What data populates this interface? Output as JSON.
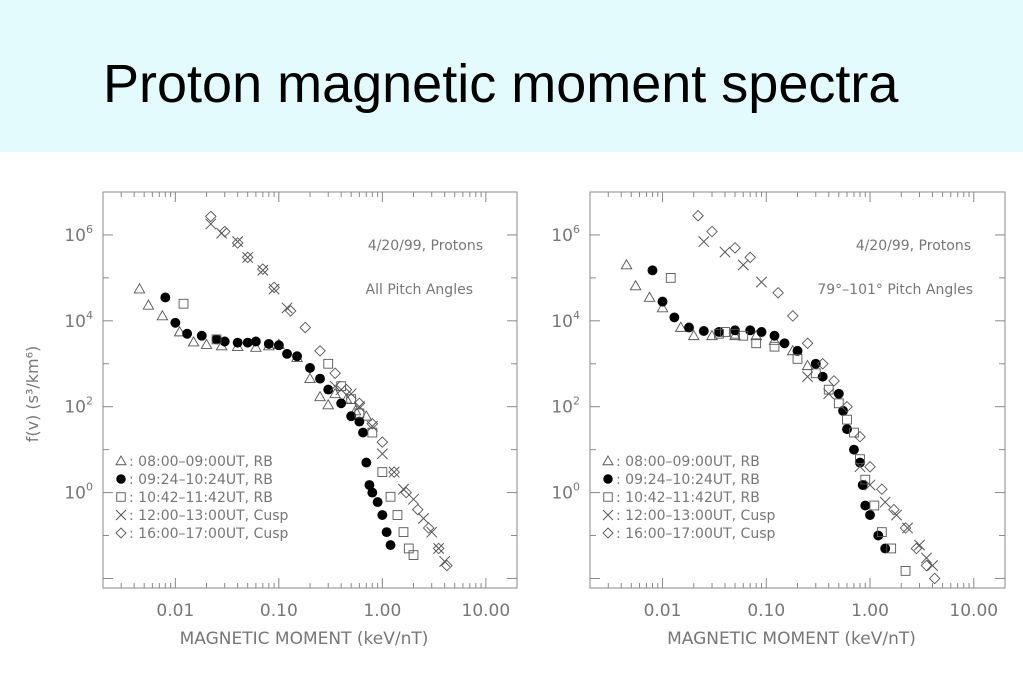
{
  "slide": {
    "title": "Proton magnetic moment spectra"
  },
  "colors": {
    "banner": "#e3fbfd",
    "axis": "#888888",
    "text": "#777777",
    "filled_marker": "#000000"
  },
  "marker_symbols": {
    "triangle": "△",
    "filled_circle": "●",
    "square": "□",
    "cross": "×",
    "diamond": "◇"
  },
  "chart_data": [
    {
      "type": "scatter",
      "title": "4/20/99, Protons",
      "subtitle": "All Pitch Angles",
      "xlabel": "MAGNETIC MOMENT (keV/nT)",
      "ylabel": "f(v) (s³/km⁶)",
      "xscale": "log",
      "yscale": "log",
      "xlim": [
        0.002,
        20
      ],
      "ylim": [
        0.006,
        10000000
      ],
      "xticks": [
        {
          "v": 0.01,
          "label": "0.01"
        },
        {
          "v": 0.1,
          "label": "0.10"
        },
        {
          "v": 1,
          "label": "1.00"
        },
        {
          "v": 10,
          "label": "10.00"
        }
      ],
      "yticks": [
        {
          "v": 1,
          "base": "10",
          "exp": "0"
        },
        {
          "v": 100,
          "base": "10",
          "exp": "2"
        },
        {
          "v": 10000,
          "base": "10",
          "exp": "4"
        },
        {
          "v": 1000000,
          "base": "10",
          "exp": "6"
        }
      ],
      "legend_position": "bottom-left",
      "series": [
        {
          "name": "08:00–09:00UT, RB",
          "marker": "triangle",
          "points": [
            [
              0.0045,
              55000
            ],
            [
              0.0055,
              23000
            ],
            [
              0.0075,
              13000
            ],
            [
              0.011,
              5500
            ],
            [
              0.015,
              3200
            ],
            [
              0.02,
              2800
            ],
            [
              0.028,
              2600
            ],
            [
              0.04,
              2500
            ],
            [
              0.06,
              2400
            ],
            [
              0.08,
              2600
            ],
            [
              0.1,
              2800
            ],
            [
              0.15,
              1400
            ],
            [
              0.2,
              450
            ],
            [
              0.25,
              170
            ],
            [
              0.3,
              110
            ],
            [
              0.35,
              200
            ],
            [
              0.45,
              150
            ],
            [
              0.55,
              80
            ],
            [
              0.7,
              60
            ]
          ]
        },
        {
          "name": "09:24–10:24UT, RB",
          "marker": "filled_circle",
          "points": [
            [
              0.008,
              35000
            ],
            [
              0.01,
              9000
            ],
            [
              0.013,
              5000
            ],
            [
              0.018,
              4500
            ],
            [
              0.025,
              3700
            ],
            [
              0.03,
              3300
            ],
            [
              0.04,
              3100
            ],
            [
              0.05,
              3100
            ],
            [
              0.06,
              3300
            ],
            [
              0.08,
              2900
            ],
            [
              0.1,
              2700
            ],
            [
              0.12,
              1700
            ],
            [
              0.15,
              1500
            ],
            [
              0.2,
              800
            ],
            [
              0.25,
              450
            ],
            [
              0.3,
              250
            ],
            [
              0.4,
              120
            ],
            [
              0.5,
              60
            ],
            [
              0.6,
              45
            ],
            [
              0.65,
              25
            ],
            [
              0.7,
              5
            ],
            [
              0.75,
              1.5
            ],
            [
              0.8,
              1.0
            ],
            [
              0.9,
              0.6
            ],
            [
              1.0,
              0.3
            ],
            [
              1.1,
              0.12
            ],
            [
              1.2,
              0.06
            ]
          ]
        },
        {
          "name": "10:42–11:42UT, RB",
          "marker": "square",
          "points": [
            [
              0.012,
              25000
            ],
            [
              0.025,
              3700
            ],
            [
              0.3,
              1000
            ],
            [
              0.4,
              300
            ],
            [
              0.5,
              150
            ],
            [
              0.6,
              70
            ],
            [
              0.8,
              25
            ],
            [
              1.0,
              3
            ],
            [
              1.2,
              0.8
            ],
            [
              1.4,
              0.3
            ],
            [
              1.6,
              0.12
            ],
            [
              1.8,
              0.05
            ],
            [
              2.0,
              0.035
            ]
          ]
        },
        {
          "name": "12:00–13:00UT, Cusp",
          "marker": "cross",
          "points": [
            [
              0.022,
              1800000
            ],
            [
              0.028,
              1100000
            ],
            [
              0.04,
              700000
            ],
            [
              0.05,
              300000
            ],
            [
              0.07,
              150000
            ],
            [
              0.09,
              55000
            ],
            [
              0.12,
              20000
            ],
            [
              0.35,
              300
            ],
            [
              0.4,
              250
            ],
            [
              0.5,
              200
            ],
            [
              0.6,
              100
            ],
            [
              0.8,
              35
            ],
            [
              1.0,
              8
            ],
            [
              1.3,
              3
            ],
            [
              1.6,
              1.2
            ],
            [
              2.0,
              0.7
            ],
            [
              2.5,
              0.25
            ],
            [
              3.0,
              0.12
            ],
            [
              3.5,
              0.05
            ],
            [
              4.0,
              0.025
            ]
          ]
        },
        {
          "name": "16:00–17:00UT, Cusp",
          "marker": "diamond",
          "points": [
            [
              0.022,
              2700000
            ],
            [
              0.03,
              1200000
            ],
            [
              0.04,
              650000
            ],
            [
              0.05,
              300000
            ],
            [
              0.07,
              160000
            ],
            [
              0.09,
              60000
            ],
            [
              0.13,
              17000
            ],
            [
              0.18,
              7000
            ],
            [
              0.25,
              2000
            ],
            [
              0.35,
              600
            ],
            [
              0.45,
              250
            ],
            [
              0.6,
              120
            ],
            [
              0.8,
              40
            ],
            [
              1.0,
              15
            ],
            [
              1.3,
              3
            ],
            [
              1.7,
              1.0
            ],
            [
              2.2,
              0.4
            ],
            [
              2.8,
              0.15
            ],
            [
              3.5,
              0.05
            ],
            [
              4.2,
              0.02
            ]
          ]
        }
      ]
    },
    {
      "type": "scatter",
      "title": "4/20/99, Protons",
      "subtitle": "79°–101° Pitch Angles",
      "xlabel": "MAGNETIC MOMENT (keV/nT)",
      "ylabel": "",
      "xscale": "log",
      "yscale": "log",
      "xlim": [
        0.002,
        20
      ],
      "ylim": [
        0.006,
        10000000
      ],
      "xticks": [
        {
          "v": 0.01,
          "label": "0.01"
        },
        {
          "v": 0.1,
          "label": "0.10"
        },
        {
          "v": 1,
          "label": "1.00"
        },
        {
          "v": 10,
          "label": "10.00"
        }
      ],
      "yticks": [
        {
          "v": 1,
          "base": "10",
          "exp": "0"
        },
        {
          "v": 100,
          "base": "10",
          "exp": "2"
        },
        {
          "v": 10000,
          "base": "10",
          "exp": "4"
        },
        {
          "v": 1000000,
          "base": "10",
          "exp": "6"
        }
      ],
      "legend_position": "bottom-left",
      "series": [
        {
          "name": "08:00–09:00UT, RB",
          "marker": "triangle",
          "points": [
            [
              0.0045,
              200000
            ],
            [
              0.0055,
              65000
            ],
            [
              0.0075,
              35000
            ],
            [
              0.01,
              20000
            ],
            [
              0.015,
              7000
            ],
            [
              0.02,
              4500
            ],
            [
              0.03,
              4500
            ],
            [
              0.05,
              4500
            ],
            [
              0.08,
              4500
            ],
            [
              0.12,
              3500
            ],
            [
              0.18,
              2000
            ],
            [
              0.25,
              900
            ]
          ]
        },
        {
          "name": "09:24–10:24UT, RB",
          "marker": "filled_circle",
          "points": [
            [
              0.008,
              150000
            ],
            [
              0.01,
              28000
            ],
            [
              0.013,
              12000
            ],
            [
              0.018,
              7000
            ],
            [
              0.025,
              5800
            ],
            [
              0.035,
              5500
            ],
            [
              0.05,
              6000
            ],
            [
              0.07,
              6000
            ],
            [
              0.09,
              5500
            ],
            [
              0.12,
              4500
            ],
            [
              0.15,
              3000
            ],
            [
              0.2,
              2000
            ],
            [
              0.3,
              1000
            ],
            [
              0.35,
              500
            ],
            [
              0.5,
              200
            ],
            [
              0.55,
              80
            ],
            [
              0.6,
              30
            ],
            [
              0.7,
              10
            ],
            [
              0.8,
              5
            ],
            [
              0.85,
              1.5
            ],
            [
              0.9,
              0.5
            ],
            [
              1.0,
              0.3
            ],
            [
              1.2,
              0.1
            ],
            [
              1.4,
              0.05
            ]
          ]
        },
        {
          "name": "10:42–11:42UT, RB",
          "marker": "square",
          "points": [
            [
              0.012,
              100000
            ],
            [
              0.035,
              5000
            ],
            [
              0.04,
              5500
            ],
            [
              0.05,
              5000
            ],
            [
              0.06,
              4500
            ],
            [
              0.08,
              3000
            ],
            [
              0.12,
              2500
            ],
            [
              0.2,
              1300
            ],
            [
              0.3,
              600
            ],
            [
              0.4,
              250
            ],
            [
              0.5,
              120
            ],
            [
              0.6,
              50
            ],
            [
              0.7,
              25
            ],
            [
              0.8,
              6
            ],
            [
              0.9,
              2
            ],
            [
              1.1,
              0.5
            ],
            [
              1.3,
              0.12
            ],
            [
              1.6,
              0.05
            ],
            [
              2.2,
              0.015
            ]
          ]
        },
        {
          "name": "12:00–13:00UT, Cusp",
          "marker": "cross",
          "points": [
            [
              0.025,
              700000
            ],
            [
              0.04,
              400000
            ],
            [
              0.06,
              200000
            ],
            [
              0.09,
              80000
            ],
            [
              0.25,
              500
            ],
            [
              0.4,
              200
            ],
            [
              0.8,
              4
            ],
            [
              1.0,
              1.5
            ],
            [
              1.4,
              0.6
            ],
            [
              1.8,
              0.3
            ],
            [
              2.3,
              0.15
            ],
            [
              3.0,
              0.06
            ],
            [
              3.5,
              0.03
            ],
            [
              4.0,
              0.02
            ]
          ]
        },
        {
          "name": "16:00–17:00UT, Cusp",
          "marker": "diamond",
          "points": [
            [
              0.022,
              2800000
            ],
            [
              0.03,
              1200000
            ],
            [
              0.05,
              500000
            ],
            [
              0.07,
              300000
            ],
            [
              0.13,
              45000
            ],
            [
              0.18,
              13000
            ],
            [
              0.25,
              3000
            ],
            [
              0.35,
              1000
            ],
            [
              0.45,
              400
            ],
            [
              0.6,
              100
            ],
            [
              0.8,
              20
            ],
            [
              1.0,
              4
            ],
            [
              1.3,
              1.2
            ],
            [
              1.7,
              0.4
            ],
            [
              2.2,
              0.15
            ],
            [
              2.8,
              0.05
            ],
            [
              3.5,
              0.02
            ],
            [
              4.2,
              0.01
            ]
          ]
        }
      ]
    }
  ]
}
